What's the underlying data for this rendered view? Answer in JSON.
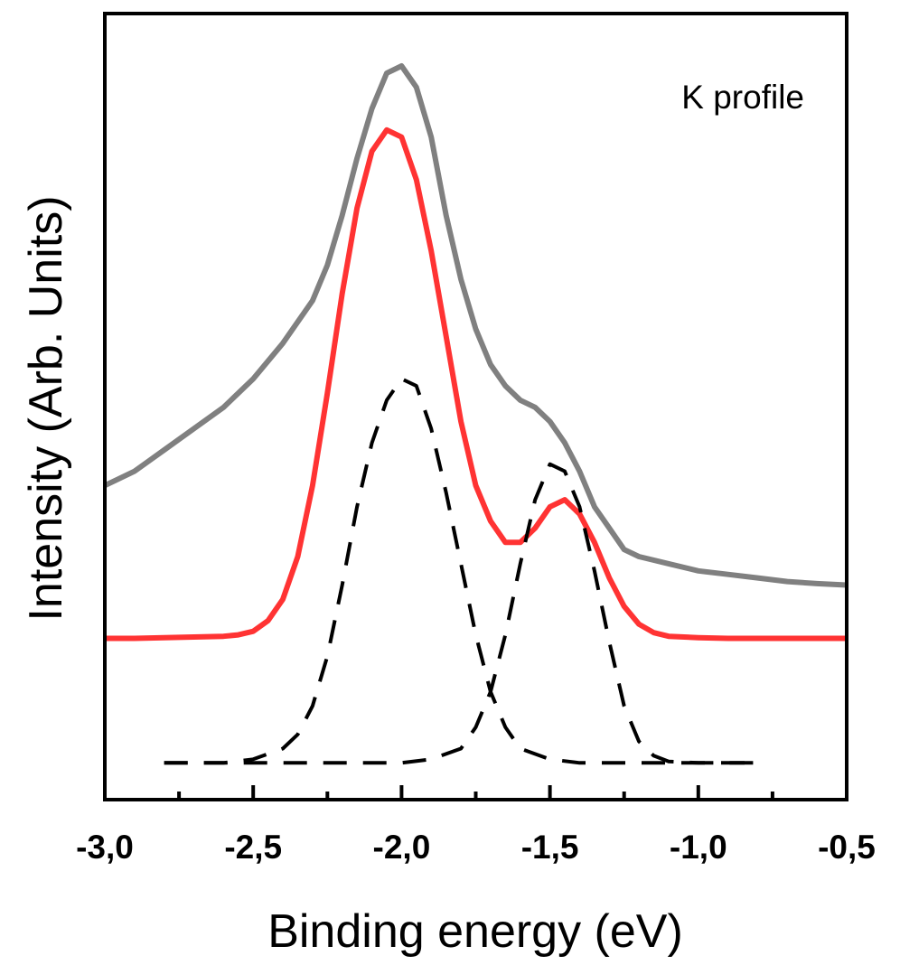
{
  "chart_data": {
    "type": "line",
    "title": "",
    "annotation": "K profile",
    "xlabel": "Binding energy (eV)",
    "ylabel": "Intensity (Arb. Units)",
    "xlim": [
      -3.0,
      -0.5
    ],
    "ylim": [
      0,
      1
    ],
    "x_ticks": [
      -3.0,
      -2.5,
      -2.0,
      -1.5,
      -1.0,
      -0.5
    ],
    "x_tick_labels": [
      "-3,0",
      "-2,5",
      "-2,0",
      "-1,5",
      "-1,0",
      "-0,5"
    ],
    "y_ticks_shown": false,
    "grid": false,
    "legend": "none",
    "series": [
      {
        "style": "solid",
        "color": "#808080",
        "x": [
          -3.0,
          -2.9,
          -2.8,
          -2.7,
          -2.6,
          -2.5,
          -2.4,
          -2.3,
          -2.25,
          -2.2,
          -2.15,
          -2.1,
          -2.05,
          -2.0,
          -1.95,
          -1.9,
          -1.85,
          -1.8,
          -1.75,
          -1.7,
          -1.65,
          -1.6,
          -1.55,
          -1.5,
          -1.45,
          -1.4,
          -1.35,
          -1.3,
          -1.25,
          -1.2,
          -1.1,
          -1.0,
          -0.9,
          -0.8,
          -0.7,
          -0.6,
          -0.5
        ],
        "values": [
          0.41,
          0.43,
          0.46,
          0.49,
          0.52,
          0.56,
          0.61,
          0.67,
          0.72,
          0.79,
          0.87,
          0.94,
          0.99,
          1.0,
          0.97,
          0.9,
          0.79,
          0.7,
          0.63,
          0.58,
          0.55,
          0.53,
          0.52,
          0.5,
          0.47,
          0.43,
          0.38,
          0.35,
          0.32,
          0.31,
          0.3,
          0.29,
          0.285,
          0.28,
          0.275,
          0.272,
          0.27
        ]
      },
      {
        "style": "solid",
        "color": "#ff3333",
        "x": [
          -3.0,
          -2.9,
          -2.8,
          -2.7,
          -2.6,
          -2.55,
          -2.5,
          -2.45,
          -2.4,
          -2.35,
          -2.3,
          -2.25,
          -2.2,
          -2.15,
          -2.1,
          -2.05,
          -2.0,
          -1.95,
          -1.9,
          -1.85,
          -1.8,
          -1.75,
          -1.7,
          -1.65,
          -1.6,
          -1.55,
          -1.5,
          -1.45,
          -1.4,
          -1.35,
          -1.3,
          -1.25,
          -1.2,
          -1.15,
          -1.1,
          -1.0,
          -0.9,
          -0.8,
          -0.7,
          -0.6,
          -0.5
        ],
        "values": [
          0.195,
          0.195,
          0.196,
          0.197,
          0.198,
          0.2,
          0.205,
          0.22,
          0.25,
          0.31,
          0.41,
          0.54,
          0.68,
          0.8,
          0.88,
          0.91,
          0.9,
          0.84,
          0.74,
          0.62,
          0.5,
          0.41,
          0.36,
          0.33,
          0.33,
          0.35,
          0.38,
          0.39,
          0.37,
          0.33,
          0.28,
          0.24,
          0.215,
          0.203,
          0.198,
          0.196,
          0.195,
          0.195,
          0.195,
          0.195,
          0.195
        ]
      },
      {
        "style": "dashed",
        "color": "#000000",
        "x": [
          -2.8,
          -2.6,
          -2.5,
          -2.4,
          -2.35,
          -2.3,
          -2.25,
          -2.2,
          -2.15,
          -2.1,
          -2.05,
          -2.0,
          -1.95,
          -1.9,
          -1.85,
          -1.8,
          -1.75,
          -1.7,
          -1.65,
          -1.6,
          -1.5,
          -1.4,
          -1.2,
          -1.0,
          -0.8
        ],
        "values": [
          0.02,
          0.02,
          0.025,
          0.04,
          0.06,
          0.1,
          0.17,
          0.27,
          0.38,
          0.47,
          0.53,
          0.56,
          0.55,
          0.49,
          0.4,
          0.3,
          0.2,
          0.12,
          0.07,
          0.04,
          0.025,
          0.02,
          0.02,
          0.02,
          0.02
        ]
      },
      {
        "style": "dashed",
        "color": "#000000",
        "x": [
          -2.8,
          -2.2,
          -2.0,
          -1.9,
          -1.8,
          -1.75,
          -1.7,
          -1.65,
          -1.6,
          -1.55,
          -1.5,
          -1.45,
          -1.4,
          -1.35,
          -1.3,
          -1.25,
          -1.2,
          -1.15,
          -1.1,
          -1.0,
          -0.8
        ],
        "values": [
          0.02,
          0.02,
          0.02,
          0.025,
          0.04,
          0.07,
          0.12,
          0.2,
          0.3,
          0.39,
          0.44,
          0.43,
          0.38,
          0.29,
          0.19,
          0.1,
          0.05,
          0.03,
          0.022,
          0.02,
          0.02
        ]
      }
    ]
  }
}
